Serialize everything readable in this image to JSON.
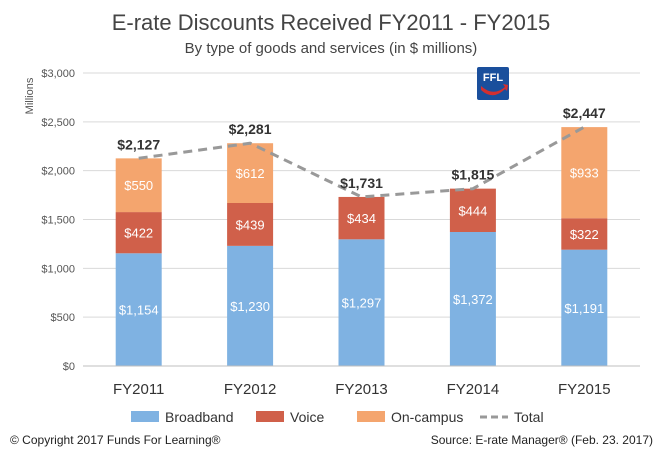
{
  "chart_data": {
    "type": "bar",
    "stacked": true,
    "title": "E-rate Discounts Received FY2011 - FY2015",
    "subtitle": "By type of goods and services  (in $ millions)",
    "ylabel": "Millions",
    "xlabel": "",
    "ylim": [
      0,
      3000
    ],
    "yticks": [
      0,
      500,
      1000,
      1500,
      2000,
      2500,
      3000
    ],
    "ytick_labels": [
      "$0",
      "$500",
      "$1,000",
      "$1,500",
      "$2,000",
      "$2,500",
      "$3,000"
    ],
    "categories": [
      "FY2011",
      "FY2012",
      "FY2013",
      "FY2014",
      "FY2015"
    ],
    "series": [
      {
        "name": "Broadband",
        "color": "#7fb2e2",
        "values": [
          1154,
          1230,
          1297,
          1372,
          1191
        ],
        "labels": [
          "$1,154",
          "$1,230",
          "$1,297",
          "$1,372",
          "$1,191"
        ]
      },
      {
        "name": "Voice",
        "color": "#d0604a",
        "values": [
          422,
          439,
          434,
          444,
          322
        ],
        "labels": [
          "$422",
          "$439",
          "$434",
          "$444",
          "$322"
        ]
      },
      {
        "name": "On-campus",
        "color": "#f4a56e",
        "values": [
          550,
          612,
          0,
          0,
          933
        ],
        "labels": [
          "$550",
          "$612",
          "",
          "",
          "$933"
        ]
      }
    ],
    "total": {
      "name": "Total",
      "color": "#999999",
      "values": [
        2127,
        2281,
        1731,
        1815,
        2447
      ],
      "labels": [
        "$2,127",
        "$2,281",
        "$1,731",
        "$1,815",
        "$2,447"
      ]
    },
    "grid": true,
    "legend_position": "bottom"
  },
  "logo": {
    "text": "FFL",
    "color": "#1a4f9c",
    "accent": "#d32f2f"
  },
  "footer": {
    "copyright": "© Copyright 2017 Funds For Learning®",
    "source": "Source: E-rate Manager®  (Feb. 23. 2017)"
  }
}
